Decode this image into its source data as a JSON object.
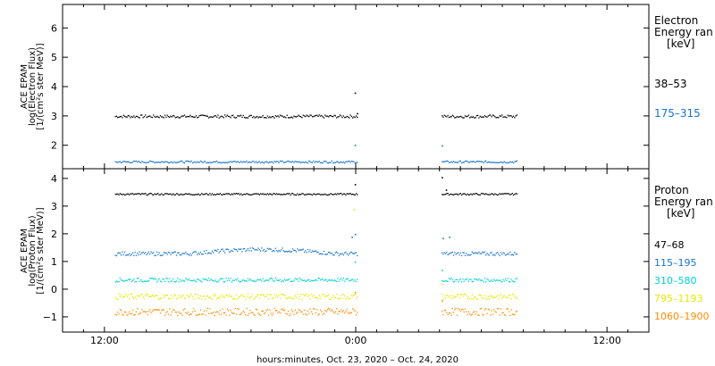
{
  "chart_data": [
    {
      "type": "scatter",
      "panel": "electron",
      "ylabel_lines": [
        "ACE EPAM",
        "log(Electron Flux)",
        "[1/(cm²s ster MeV)]"
      ],
      "legend_title_lines": [
        "Electron",
        "Energy ran",
        "[keV]"
      ],
      "yticks": [
        2,
        3,
        4,
        5,
        6
      ],
      "ylim": [
        1.2,
        6.8
      ],
      "grid": false,
      "series": [
        {
          "name": "38–53",
          "color": "#000000",
          "base": 3.0,
          "noise": 0.05,
          "segments": [
            [
              -11.5,
              0.1
            ],
            [
              4.1,
              7.7
            ]
          ],
          "spikes": [
            [
              -0.05,
              3.8
            ],
            [
              0.05,
              3.1
            ]
          ]
        },
        {
          "name": "175–315",
          "color": "#1874cd",
          "base": 1.45,
          "noise": 0.035,
          "segments": [
            [
              -11.5,
              0.1
            ],
            [
              4.1,
              7.7
            ]
          ],
          "spikes": [
            [
              -0.05,
              2.02
            ],
            [
              4.1,
              2.0
            ]
          ]
        }
      ]
    },
    {
      "type": "scatter",
      "panel": "proton",
      "ylabel_lines": [
        "ACE EPAM",
        "log(Proton Flux)",
        "[1/(cm²s ster MeV)]"
      ],
      "legend_title_lines": [
        "Proton",
        "Energy ran",
        "[keV]"
      ],
      "yticks": [
        -1,
        0,
        1,
        2,
        3,
        4
      ],
      "ylim": [
        -1.55,
        4.35
      ],
      "grid": false,
      "series": [
        {
          "name": "47–68",
          "color": "#000000",
          "base": 3.45,
          "noise": 0.03,
          "segments": [
            [
              -11.5,
              0.1
            ],
            [
              4.1,
              7.7
            ]
          ],
          "spikes": [
            [
              -0.05,
              3.8
            ],
            [
              4.1,
              4.05
            ],
            [
              4.3,
              3.6
            ]
          ]
        },
        {
          "name": "115–195",
          "color": "#1874cd",
          "base": 1.3,
          "noise": 0.07,
          "segments": [
            [
              -11.5,
              0.1
            ],
            [
              4.1,
              7.7
            ]
          ],
          "spikes": [
            [
              -0.2,
              1.9
            ],
            [
              -0.05,
              2.0
            ],
            [
              4.15,
              1.85
            ],
            [
              4.45,
              1.9
            ]
          ]
        },
        {
          "name": "310–580",
          "color": "#00d0d0",
          "base": 0.35,
          "noise": 0.07,
          "segments": [
            [
              -11.5,
              0.1
            ],
            [
              4.1,
              7.7
            ]
          ],
          "spikes": [
            [
              -0.05,
              1.0
            ],
            [
              4.1,
              0.7
            ]
          ]
        },
        {
          "name": "795–1193",
          "color": "#e8e800",
          "base": -0.25,
          "noise": 0.1,
          "segments": [
            [
              -11.5,
              0.1
            ],
            [
              4.1,
              7.7
            ]
          ],
          "spikes": [
            [
              -0.1,
              2.9
            ],
            [
              4.1,
              0.2
            ]
          ]
        },
        {
          "name": "1060–1900",
          "color": "#ff8c00",
          "base": -0.8,
          "noise": 0.13,
          "segments": [
            [
              -11.5,
              0.1
            ],
            [
              4.1,
              7.7
            ]
          ],
          "spikes": [
            [
              -0.05,
              -0.1
            ],
            [
              4.1,
              -0.4
            ]
          ]
        }
      ]
    }
  ],
  "x_axis": {
    "range_hours": [
      -14,
      14
    ],
    "ticks": [
      {
        "h": -12,
        "label": "12:00"
      },
      {
        "h": 0,
        "label": "0:00"
      },
      {
        "h": 12,
        "label": "12:00"
      }
    ],
    "title": "hours:minutes, Oct. 23, 2020 – Oct. 24, 2020"
  }
}
